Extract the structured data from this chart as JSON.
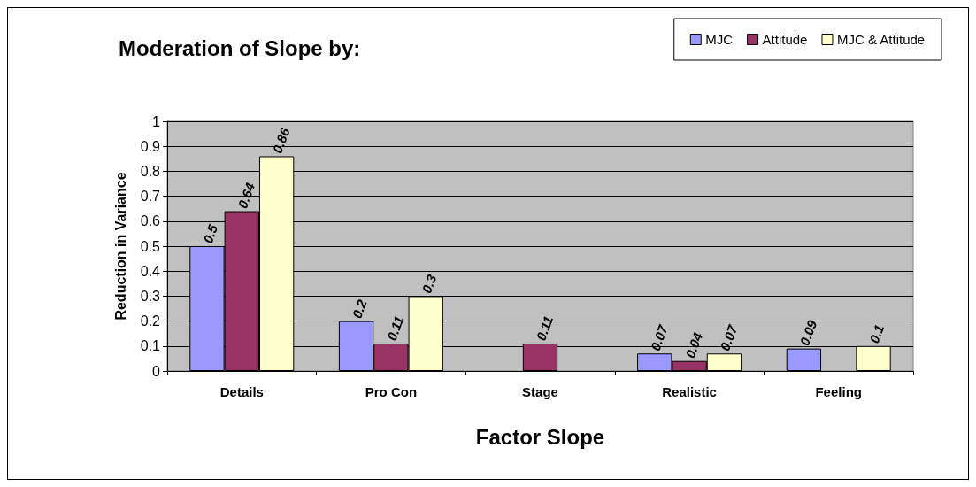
{
  "chart_data": {
    "type": "bar",
    "title": "Moderation of Slope by:",
    "xlabel": "Factor Slope",
    "ylabel": "Reduction in Variance",
    "categories": [
      "Details",
      "Pro Con",
      "Stage",
      "Realistic",
      "Feeling"
    ],
    "series": [
      {
        "name": "MJC",
        "color": "#9999ff",
        "values": [
          0.5,
          0.2,
          null,
          0.07,
          0.09
        ],
        "value_labels": [
          "0.5",
          "0.2",
          null,
          "0.07",
          "0.09"
        ]
      },
      {
        "name": "Attitude",
        "color": "#993366",
        "values": [
          0.64,
          0.11,
          0.11,
          0.04,
          null
        ],
        "value_labels": [
          "0.64",
          "0.11",
          "0.11",
          "0.04",
          null
        ]
      },
      {
        "name": "MJC & Attitude",
        "color": "#ffffcc",
        "values": [
          0.86,
          0.3,
          null,
          0.07,
          0.1
        ],
        "value_labels": [
          "0.86",
          "0.3",
          null,
          "0.07",
          "0.1"
        ]
      }
    ],
    "ylim": [
      0,
      1
    ],
    "yticks": [
      0,
      0.1,
      0.2,
      0.3,
      0.4,
      0.5,
      0.6,
      0.7,
      0.8,
      0.9,
      1
    ],
    "grid": "y",
    "legend": "top right"
  }
}
